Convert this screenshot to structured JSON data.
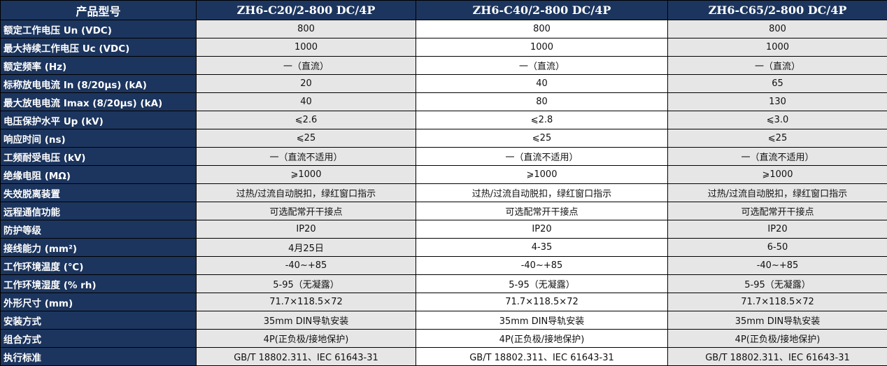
{
  "header": {
    "label": "产品型号",
    "models": [
      "ZH6-C20/2-800 DC/4P",
      "ZH6-C40/2-800 DC/4P",
      "ZH6-C65/2-800 DC/4P"
    ]
  },
  "rows": [
    {
      "label": "额定工作电压 Un (VDC)",
      "values": [
        "800",
        "800",
        "800"
      ]
    },
    {
      "label": "最大持续工作电压 Uc (VDC)",
      "values": [
        "1000",
        "1000",
        "1000"
      ]
    },
    {
      "label": "额定频率 (Hz)",
      "values": [
        "一（直流）",
        "一（直流）",
        "一（直流）"
      ]
    },
    {
      "label": "标称放电电流 In (8/20μs) (kA)",
      "values": [
        "20",
        "40",
        "65"
      ]
    },
    {
      "label": "最大放电电流 Imax (8/20μs) (kA)",
      "values": [
        "40",
        "80",
        "130"
      ]
    },
    {
      "label": "电压保护水平 Up (kV)",
      "values": [
        "⩽2.6",
        "⩽2.8",
        "⩽3.0"
      ]
    },
    {
      "label": "响应时间 (ns)",
      "values": [
        "⩽25",
        "⩽25",
        "⩽25"
      ]
    },
    {
      "label": "工频耐受电压 (kV)",
      "values": [
        "一（直流不适用）",
        "一（直流不适用）",
        "一（直流不适用）"
      ]
    },
    {
      "label": "绝缘电阻 (MΩ)",
      "values": [
        "⩾1000",
        "⩾1000",
        "⩾1000"
      ]
    },
    {
      "label": "失效脱离装置",
      "values": [
        "过热/过流自动脱扣，绿红窗口指示",
        "过热/过流自动脱扣，绿红窗口指示",
        "过热/过流自动脱扣，绿红窗口指示"
      ]
    },
    {
      "label": "远程通信功能",
      "values": [
        "可选配常开干接点",
        "可选配常开干接点",
        "可选配常开干接点"
      ]
    },
    {
      "label": "防护等级",
      "values": [
        "IP20",
        "IP20",
        "IP20"
      ]
    },
    {
      "label": "接线能力 (mm²)",
      "values": [
        "4月25日",
        "4-35",
        "6-50"
      ]
    },
    {
      "label": "工作环境温度 (℃)",
      "values": [
        "-40~+85",
        "-40~+85",
        "-40~+85"
      ]
    },
    {
      "label": "工作环境湿度 (% rh)",
      "values": [
        "5-95（无凝露）",
        "5-95（无凝露）",
        "5-95（无凝露）"
      ]
    },
    {
      "label": "外形尺寸 (mm)",
      "values": [
        "71.7×118.5×72",
        "71.7×118.5×72",
        "71.7×118.5×72"
      ]
    },
    {
      "label": "安装方式",
      "values": [
        "35mm DIN导轨安装",
        "35mm DIN导轨安装",
        "35mm DIN导轨安装"
      ]
    },
    {
      "label": "组合方式",
      "values": [
        "4P(正负极/接地保护)",
        "4P(正负极/接地保护)",
        "4P(正负极/接地保护)"
      ]
    },
    {
      "label": "执行标准",
      "values": [
        "GB/T 18802.311、IEC 61643-31",
        "GB/T 18802.311、IEC 61643-31",
        "GB/T 18802.311、IEC 61643-31"
      ]
    }
  ]
}
